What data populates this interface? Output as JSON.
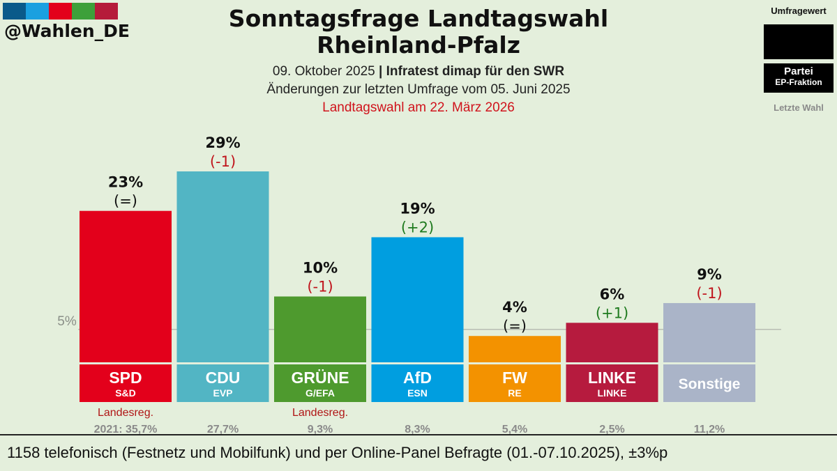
{
  "brand": {
    "handle": "@Wahlen_DE",
    "colors": [
      "#0a5a8a",
      "#1aa0e0",
      "#e3001b",
      "#3da03a",
      "#b51b3a"
    ]
  },
  "header": {
    "title_line1": "Sonntagsfrage Landtagswahl",
    "title_line2": "Rheinland-Pfalz",
    "date": "09. Oktober 2025",
    "separator": "|",
    "institute": "Infratest dimap für den SWR",
    "changes_note": "Änderungen zur letzten Umfrage vom 05. Juni 2025",
    "election_note": "Landtagswahl am 22. März 2026"
  },
  "legend": {
    "value_label": "Umfragewert",
    "party_label": "Partei",
    "ep_label": "EP-Fraktion",
    "last_label": "Letzte Wahl"
  },
  "chart_data": {
    "type": "bar",
    "threshold_label": "5%",
    "threshold_value": 5,
    "ylim": [
      0,
      29
    ],
    "bars": [
      {
        "party": "SPD",
        "ep_group": "S&D",
        "value": 23,
        "value_label": "23%",
        "change": "(=)",
        "change_color": "#111111",
        "color": "#e3001b",
        "note": "Landesreg.",
        "last_election": "2021: 35,7%"
      },
      {
        "party": "CDU",
        "ep_group": "EVP",
        "value": 29,
        "value_label": "29%",
        "change": "(-1)",
        "change_color": "#c0141c",
        "color": "#52b5c4",
        "note": "",
        "last_election": "27,7%"
      },
      {
        "party": "GRÜNE",
        "ep_group": "G/EFA",
        "value": 10,
        "value_label": "10%",
        "change": "(-1)",
        "change_color": "#c0141c",
        "color": "#4e9a2e",
        "note": "Landesreg.",
        "last_election": "9,3%"
      },
      {
        "party": "AfD",
        "ep_group": "ESN",
        "value": 19,
        "value_label": "19%",
        "change": "(+2)",
        "change_color": "#1e7a1e",
        "color": "#009ee0",
        "note": "",
        "last_election": "8,3%"
      },
      {
        "party": "FW",
        "ep_group": "RE",
        "value": 4,
        "value_label": "4%",
        "change": "(=)",
        "change_color": "#111111",
        "color": "#f39200",
        "note": "",
        "last_election": "5,4%"
      },
      {
        "party": "LINKE",
        "ep_group": "LINKE",
        "value": 6,
        "value_label": "6%",
        "change": "(+1)",
        "change_color": "#1e7a1e",
        "color": "#b61b3e",
        "note": "",
        "last_election": "2,5%"
      },
      {
        "party": "Sonstige",
        "ep_group": "",
        "value": 9,
        "value_label": "9%",
        "change": "(-1)",
        "change_color": "#c0141c",
        "color": "#aab4c8",
        "note": "",
        "last_election": "11,2%"
      }
    ]
  },
  "footer": {
    "text": "1158 telefonisch (Festnetz und Mobilfunk) und per Online-Panel Befragte (01.-07.10.2025), ±3%p"
  }
}
